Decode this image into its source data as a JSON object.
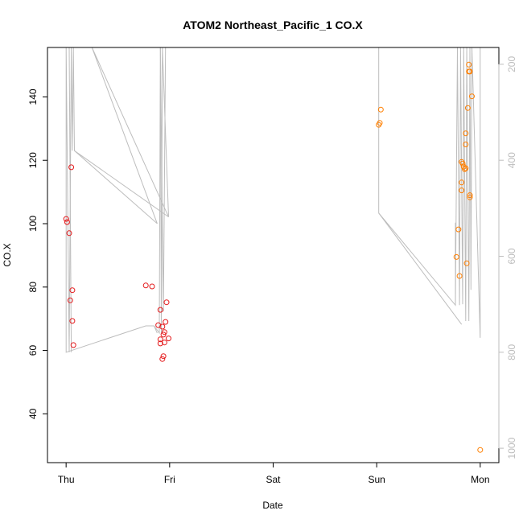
{
  "chart_data": {
    "type": "scatter",
    "title": "ATOM2 Northeast_Pacific_1 CO.X",
    "xlabel": "Date",
    "ylabel": "CO.X",
    "x_ticks": [
      "Thu",
      "Fri",
      "Sat",
      "Sun",
      "Mon"
    ],
    "x_range_days": [
      -0.18,
      4.18
    ],
    "y_ticks": [
      40,
      60,
      80,
      100,
      120,
      140
    ],
    "ylim": [
      24.6,
      155.6
    ],
    "y2_ticks": [
      200,
      400,
      600,
      800,
      1000
    ],
    "y2lim": [
      1030,
      165
    ],
    "y2_reversed": true,
    "grid": false,
    "colors": {
      "early_points": "#e41a1c",
      "late_points": "#ff7f00",
      "secondary_line": "#bdbdbd",
      "secondary_axis": "#bdbdbd",
      "frame": "#000000"
    },
    "series": [
      {
        "color": "#e41a1c",
        "points": [
          {
            "x": 0.0,
            "y": 101.5
          },
          {
            "x": 0.01,
            "y": 100.5
          },
          {
            "x": 0.03,
            "y": 97.0
          },
          {
            "x": 0.05,
            "y": 117.8
          },
          {
            "x": 0.04,
            "y": 75.8
          },
          {
            "x": 0.06,
            "y": 79.0
          },
          {
            "x": 0.06,
            "y": 69.3
          },
          {
            "x": 0.07,
            "y": 61.7
          },
          {
            "x": 0.77,
            "y": 80.5
          },
          {
            "x": 0.83,
            "y": 80.2
          },
          {
            "x": 0.89,
            "y": 68.0
          },
          {
            "x": 0.91,
            "y": 72.8
          },
          {
            "x": 0.91,
            "y": 63.5
          },
          {
            "x": 0.91,
            "y": 62.2
          },
          {
            "x": 0.93,
            "y": 67.5
          },
          {
            "x": 0.93,
            "y": 57.3
          },
          {
            "x": 0.94,
            "y": 58.2
          },
          {
            "x": 0.94,
            "y": 65.0
          },
          {
            "x": 0.95,
            "y": 65.8
          },
          {
            "x": 0.95,
            "y": 62.5
          },
          {
            "x": 0.96,
            "y": 69.0
          },
          {
            "x": 0.97,
            "y": 75.2
          },
          {
            "x": 0.99,
            "y": 63.8
          }
        ]
      },
      {
        "color": "#ff7f00",
        "points": [
          {
            "x": 3.02,
            "y": 131.2
          },
          {
            "x": 3.03,
            "y": 131.8
          },
          {
            "x": 3.04,
            "y": 136.0
          },
          {
            "x": 3.77,
            "y": 89.5
          },
          {
            "x": 3.79,
            "y": 98.2
          },
          {
            "x": 3.8,
            "y": 83.5
          },
          {
            "x": 3.82,
            "y": 119.5
          },
          {
            "x": 3.82,
            "y": 113.0
          },
          {
            "x": 3.82,
            "y": 110.5
          },
          {
            "x": 3.83,
            "y": 119.0
          },
          {
            "x": 3.84,
            "y": 118.0
          },
          {
            "x": 3.85,
            "y": 117.2
          },
          {
            "x": 3.86,
            "y": 128.5
          },
          {
            "x": 3.86,
            "y": 125.0
          },
          {
            "x": 3.86,
            "y": 117.5
          },
          {
            "x": 3.87,
            "y": 87.5
          },
          {
            "x": 3.88,
            "y": 136.5
          },
          {
            "x": 3.89,
            "y": 150.2
          },
          {
            "x": 3.89,
            "y": 148.0
          },
          {
            "x": 3.9,
            "y": 148.0
          },
          {
            "x": 3.9,
            "y": 109.0
          },
          {
            "x": 3.9,
            "y": 108.3
          },
          {
            "x": 3.92,
            "y": 140.2
          },
          {
            "x": 4.0,
            "y": 28.6
          }
        ]
      }
    ],
    "secondary_line": {
      "color": "#bdbdbd",
      "axis": "right",
      "points": [
        {
          "x": 0.0,
          "y2": 165
        },
        {
          "x": 0.03,
          "y2": 800
        },
        {
          "x": 0.05,
          "y2": 165
        },
        {
          "x": 0.06,
          "y2": 380
        },
        {
          "x": 0.07,
          "y2": 165
        },
        {
          "x": 0.08,
          "y2": 380
        },
        {
          "x": 0.88,
          "y2": 532
        },
        {
          "x": 0.25,
          "y2": 165
        },
        {
          "x": 0.99,
          "y2": 518
        },
        {
          "x": 0.93,
          "y2": 165
        },
        {
          "x": 0.92,
          "y2": 760
        },
        {
          "x": 0.91,
          "y2": 165
        },
        {
          "x": 0.9,
          "y2": 760
        },
        {
          "x": 0.85,
          "y2": 745
        },
        {
          "x": 0.77,
          "y2": 745
        },
        {
          "x": 0.0,
          "y2": 800
        },
        {
          "x": 0.0,
          "y2": 165
        }
      ],
      "extra_segments": [
        [
          {
            "x": 0.08,
            "y2": 380
          },
          {
            "x": 0.99,
            "y2": 518
          }
        ],
        [
          {
            "x": 3.02,
            "y2": 165
          },
          {
            "x": 3.02,
            "y2": 510
          },
          {
            "x": 3.76,
            "y2": 702
          },
          {
            "x": 3.76,
            "y2": 530
          }
        ],
        [
          {
            "x": 3.76,
            "y2": 702
          },
          {
            "x": 3.78,
            "y2": 165
          },
          {
            "x": 3.8,
            "y2": 702
          },
          {
            "x": 3.81,
            "y2": 165
          },
          {
            "x": 3.83,
            "y2": 700
          },
          {
            "x": 3.84,
            "y2": 165
          },
          {
            "x": 3.86,
            "y2": 735
          },
          {
            "x": 3.87,
            "y2": 165
          },
          {
            "x": 3.89,
            "y2": 735
          },
          {
            "x": 3.9,
            "y2": 165
          },
          {
            "x": 3.91,
            "y2": 670
          },
          {
            "x": 3.92,
            "y2": 165
          },
          {
            "x": 4.0,
            "y2": 770
          },
          {
            "x": 4.0,
            "y2": 165
          }
        ],
        [
          {
            "x": 3.02,
            "y2": 510
          },
          {
            "x": 3.82,
            "y2": 742
          }
        ],
        [
          {
            "x": 0.03,
            "y2": 165
          },
          {
            "x": 0.05,
            "y2": 800
          }
        ],
        [
          {
            "x": 0.91,
            "y2": 165
          },
          {
            "x": 0.94,
            "y2": 715
          },
          {
            "x": 0.96,
            "y2": 165
          }
        ],
        [
          {
            "x": 0.85,
            "y2": 745
          },
          {
            "x": 0.88,
            "y2": 760
          }
        ]
      ]
    }
  }
}
